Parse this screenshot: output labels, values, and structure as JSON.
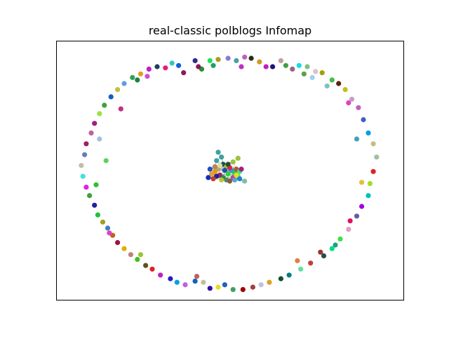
{
  "chart_data": {
    "type": "scatter",
    "title": "real-classic polblogs Infomap",
    "xlabel": "",
    "ylabel": "",
    "axis_ticks": "none",
    "grid": false,
    "legend": "none",
    "description_of_structure": "network layout: a ring of isolated community nodes surrounding a dense central cluster",
    "xlim": [
      -1.0,
      1.0
    ],
    "ylim": [
      -1.0,
      1.0
    ],
    "points": [
      {
        "x": -0.31,
        "y": 0.89,
        "c": "#0f5fe0"
      },
      {
        "x": -0.28,
        "y": 0.83,
        "c": "#8b1a5c"
      },
      {
        "x": -0.21,
        "y": 0.93,
        "c": "#2e2e8a"
      },
      {
        "x": -0.17,
        "y": 0.86,
        "c": "#2b8f2b"
      },
      {
        "x": -0.12,
        "y": 0.93,
        "c": "#1ee060"
      },
      {
        "x": -0.07,
        "y": 0.94,
        "c": "#a0a020"
      },
      {
        "x": -0.01,
        "y": 0.95,
        "c": "#8a7ad0"
      },
      {
        "x": 0.04,
        "y": 0.93,
        "c": "#4aa0a0"
      },
      {
        "x": 0.09,
        "y": 0.96,
        "c": "#c060c0"
      },
      {
        "x": 0.13,
        "y": 0.95,
        "c": "#2c2c10"
      },
      {
        "x": 0.18,
        "y": 0.92,
        "c": "#d09a20"
      },
      {
        "x": 0.22,
        "y": 0.88,
        "c": "#c020c0"
      },
      {
        "x": 0.26,
        "y": 0.88,
        "c": "#201080"
      },
      {
        "x": 0.31,
        "y": 0.93,
        "c": "#c0a0a0"
      },
      {
        "x": 0.34,
        "y": 0.89,
        "c": "#40a040"
      },
      {
        "x": 0.38,
        "y": 0.86,
        "c": "#a06080"
      },
      {
        "x": 0.42,
        "y": 0.89,
        "c": "#10e0e0"
      },
      {
        "x": 0.47,
        "y": 0.88,
        "c": "#80c080"
      },
      {
        "x": 0.52,
        "y": 0.84,
        "c": "#e0c0c0"
      },
      {
        "x": 0.56,
        "y": 0.83,
        "c": "#a0a000"
      },
      {
        "x": 0.62,
        "y": 0.77,
        "c": "#40c040"
      },
      {
        "x": 0.66,
        "y": 0.74,
        "c": "#602010"
      },
      {
        "x": 0.7,
        "y": 0.69,
        "c": "#c0c020"
      },
      {
        "x": 0.74,
        "y": 0.61,
        "c": "#c0a0c0"
      },
      {
        "x": 0.78,
        "y": 0.54,
        "c": "#c060c0"
      },
      {
        "x": 0.81,
        "y": 0.44,
        "c": "#4060c0"
      },
      {
        "x": 0.84,
        "y": 0.33,
        "c": "#00a0e0"
      },
      {
        "x": 0.87,
        "y": 0.24,
        "c": "#c0c080"
      },
      {
        "x": 0.89,
        "y": 0.13,
        "c": "#a0c0a0"
      },
      {
        "x": 0.87,
        "y": 0.01,
        "c": "#e02020"
      },
      {
        "x": 0.85,
        "y": -0.09,
        "c": "#a0e020"
      },
      {
        "x": 0.84,
        "y": -0.19,
        "c": "#00c0c0"
      },
      {
        "x": 0.8,
        "y": -0.28,
        "c": "#a000e0"
      },
      {
        "x": 0.77,
        "y": -0.36,
        "c": "#6060a0"
      },
      {
        "x": 0.72,
        "y": -0.47,
        "c": "#e0a0c0"
      },
      {
        "x": 0.67,
        "y": -0.55,
        "c": "#40e040"
      },
      {
        "x": 0.62,
        "y": -0.63,
        "c": "#00e080"
      },
      {
        "x": 0.57,
        "y": -0.69,
        "c": "#205050"
      },
      {
        "x": 0.49,
        "y": -0.75,
        "c": "#c04040"
      },
      {
        "x": 0.43,
        "y": -0.8,
        "c": "#60e0a0"
      },
      {
        "x": 0.36,
        "y": -0.85,
        "c": "#008080"
      },
      {
        "x": 0.31,
        "y": -0.88,
        "c": "#105030"
      },
      {
        "x": 0.24,
        "y": -0.91,
        "c": "#e0a020"
      },
      {
        "x": 0.19,
        "y": -0.93,
        "c": "#c0c0e0"
      },
      {
        "x": 0.14,
        "y": -0.95,
        "c": "#a04040"
      },
      {
        "x": 0.08,
        "y": -0.97,
        "c": "#a00000"
      },
      {
        "x": 0.02,
        "y": -0.97,
        "c": "#40a060"
      },
      {
        "x": -0.03,
        "y": -0.93,
        "c": "#2060c0"
      },
      {
        "x": -0.07,
        "y": -0.95,
        "c": "#e0e020"
      },
      {
        "x": -0.12,
        "y": -0.96,
        "c": "#3010a0"
      },
      {
        "x": -0.16,
        "y": -0.91,
        "c": "#c0c0a0"
      },
      {
        "x": -0.21,
        "y": -0.9,
        "c": "#1060c0"
      },
      {
        "x": -0.27,
        "y": -0.93,
        "c": "#c060e0"
      },
      {
        "x": -0.32,
        "y": -0.91,
        "c": "#00a0e0"
      },
      {
        "x": -0.36,
        "y": -0.88,
        "c": "#2020c0"
      },
      {
        "x": -0.42,
        "y": -0.85,
        "c": "#c020c0"
      },
      {
        "x": -0.47,
        "y": -0.8,
        "c": "#e02020"
      },
      {
        "x": -0.51,
        "y": -0.77,
        "c": "#605020"
      },
      {
        "x": -0.56,
        "y": -0.72,
        "c": "#40c020"
      },
      {
        "x": -0.6,
        "y": -0.68,
        "c": "#c08080"
      },
      {
        "x": -0.64,
        "y": -0.63,
        "c": "#e0b000"
      },
      {
        "x": -0.68,
        "y": -0.58,
        "c": "#a01040"
      },
      {
        "x": -0.71,
        "y": -0.52,
        "c": "#c06020"
      },
      {
        "x": -0.74,
        "y": -0.46,
        "c": "#4080c0"
      },
      {
        "x": -0.77,
        "y": -0.41,
        "c": "#a0a020"
      },
      {
        "x": -0.8,
        "y": -0.35,
        "c": "#20c040"
      },
      {
        "x": -0.82,
        "y": -0.27,
        "c": "#2020a0"
      },
      {
        "x": -0.85,
        "y": -0.19,
        "c": "#40a040"
      },
      {
        "x": -0.87,
        "y": -0.12,
        "c": "#e020e0"
      },
      {
        "x": -0.89,
        "y": -0.03,
        "c": "#40e0e0"
      },
      {
        "x": -0.9,
        "y": 0.06,
        "c": "#c0c0a0"
      },
      {
        "x": -0.88,
        "y": 0.15,
        "c": "#6080c0"
      },
      {
        "x": -0.87,
        "y": 0.24,
        "c": "#a02060"
      },
      {
        "x": -0.84,
        "y": 0.33,
        "c": "#c060a0"
      },
      {
        "x": -0.82,
        "y": 0.41,
        "c": "#a02080"
      },
      {
        "x": -0.79,
        "y": 0.49,
        "c": "#a0e040"
      },
      {
        "x": -0.76,
        "y": 0.56,
        "c": "#40a040"
      },
      {
        "x": -0.72,
        "y": 0.63,
        "c": "#1060c0"
      },
      {
        "x": -0.68,
        "y": 0.69,
        "c": "#c0c040"
      },
      {
        "x": -0.64,
        "y": 0.74,
        "c": "#60a0e0"
      },
      {
        "x": -0.59,
        "y": 0.79,
        "c": "#30a060"
      },
      {
        "x": -0.54,
        "y": 0.82,
        "c": "#e0a020"
      },
      {
        "x": -0.49,
        "y": 0.86,
        "c": "#c020c0"
      },
      {
        "x": -0.44,
        "y": 0.88,
        "c": "#204060"
      },
      {
        "x": -0.39,
        "y": 0.87,
        "c": "#e02080"
      },
      {
        "x": -0.35,
        "y": 0.91,
        "c": "#40c0c0"
      },
      {
        "x": -0.19,
        "y": 0.88,
        "c": "#8a1a5c"
      },
      {
        "x": -0.1,
        "y": 0.89,
        "c": "#20a060"
      },
      {
        "x": 0.07,
        "y": 0.88,
        "c": "#c030c0"
      },
      {
        "x": 0.45,
        "y": 0.82,
        "c": "#60a040"
      },
      {
        "x": 0.59,
        "y": 0.72,
        "c": "#80c0c0"
      },
      {
        "x": 0.72,
        "y": 0.58,
        "c": "#e040c0"
      },
      {
        "x": 0.77,
        "y": 0.28,
        "c": "#40a0c0"
      },
      {
        "x": 0.8,
        "y": -0.08,
        "c": "#e0c040"
      },
      {
        "x": 0.73,
        "y": -0.4,
        "c": "#e01060"
      },
      {
        "x": 0.64,
        "y": -0.6,
        "c": "#20a080"
      },
      {
        "x": 0.41,
        "y": -0.73,
        "c": "#e08040"
      },
      {
        "x": -0.2,
        "y": -0.86,
        "c": "#c06060"
      },
      {
        "x": -0.54,
        "y": -0.68,
        "c": "#a0c040"
      },
      {
        "x": -0.73,
        "y": -0.5,
        "c": "#e040c0"
      },
      {
        "x": -0.81,
        "y": -0.1,
        "c": "#30c030"
      },
      {
        "x": -0.79,
        "y": 0.28,
        "c": "#a0c0e0"
      },
      {
        "x": -0.66,
        "y": 0.53,
        "c": "#c03080"
      },
      {
        "x": -0.56,
        "y": 0.77,
        "c": "#208040"
      },
      {
        "x": -0.75,
        "y": 0.1,
        "c": "#60d060"
      },
      {
        "x": -0.5,
        "y": 0.8,
        "c": "#d050d0"
      },
      {
        "x": 0.5,
        "y": 0.79,
        "c": "#a0d0f0"
      },
      {
        "x": 0.55,
        "y": -0.66,
        "c": "#a03030"
      },
      {
        "x": -0.08,
        "y": 0.1,
        "c": "#40a0a0"
      },
      {
        "x": -0.04,
        "y": 0.07,
        "c": "#205050"
      },
      {
        "x": -0.02,
        "y": 0.05,
        "c": "#a0c040"
      },
      {
        "x": 0.02,
        "y": 0.09,
        "c": "#a0c040"
      },
      {
        "x": -0.03,
        "y": 0.02,
        "c": "#2050a0"
      },
      {
        "x": -0.07,
        "y": 0.03,
        "c": "#c0a080"
      },
      {
        "x": -0.09,
        "y": 0.01,
        "c": "#e0a000"
      },
      {
        "x": -0.06,
        "y": -0.02,
        "c": "#a02060"
      },
      {
        "x": -0.04,
        "y": -0.04,
        "c": "#209040"
      },
      {
        "x": -0.01,
        "y": -0.01,
        "c": "#30d040"
      },
      {
        "x": 0.01,
        "y": 0.02,
        "c": "#20a0e0"
      },
      {
        "x": 0.03,
        "y": 0.0,
        "c": "#40c040"
      },
      {
        "x": 0.05,
        "y": -0.03,
        "c": "#60e040"
      },
      {
        "x": 0.02,
        "y": -0.04,
        "c": "#c040a0"
      },
      {
        "x": -0.02,
        "y": -0.06,
        "c": "#608060"
      },
      {
        "x": -0.05,
        "y": -0.06,
        "c": "#c0c040"
      },
      {
        "x": -0.08,
        "y": -0.03,
        "c": "#2020a0"
      },
      {
        "x": -0.1,
        "y": -0.05,
        "c": "#c04020"
      },
      {
        "x": -0.11,
        "y": -0.01,
        "c": "#e0a040"
      },
      {
        "x": -0.12,
        "y": 0.03,
        "c": "#2050c0"
      },
      {
        "x": 0.0,
        "y": 0.04,
        "c": "#e02060"
      },
      {
        "x": 0.04,
        "y": 0.03,
        "c": "#a06040"
      },
      {
        "x": 0.06,
        "y": 0.01,
        "c": "#40e080"
      },
      {
        "x": 0.0,
        "y": -0.07,
        "c": "#806040"
      },
      {
        "x": 0.03,
        "y": -0.06,
        "c": "#60a0c0"
      },
      {
        "x": -0.06,
        "y": 0.06,
        "c": "#e0e0a0"
      },
      {
        "x": -0.01,
        "y": 0.07,
        "c": "#205030"
      },
      {
        "x": 0.06,
        "y": -0.05,
        "c": "#2080e0"
      },
      {
        "x": 0.09,
        "y": -0.07,
        "c": "#80c0a0"
      },
      {
        "x": 0.07,
        "y": 0.03,
        "c": "#a02080"
      },
      {
        "x": -0.13,
        "y": -0.04,
        "c": "#1030c0"
      },
      {
        "x": -0.09,
        "y": 0.05,
        "c": "#c08060"
      },
      {
        "x": -0.05,
        "y": 0.13,
        "c": "#40a0a0"
      },
      {
        "x": -0.07,
        "y": 0.17,
        "c": "#40a0a0"
      },
      {
        "x": 0.05,
        "y": 0.12,
        "c": "#a0c040"
      },
      {
        "x": 0.04,
        "y": -0.02,
        "c": "#e0e020"
      }
    ]
  }
}
